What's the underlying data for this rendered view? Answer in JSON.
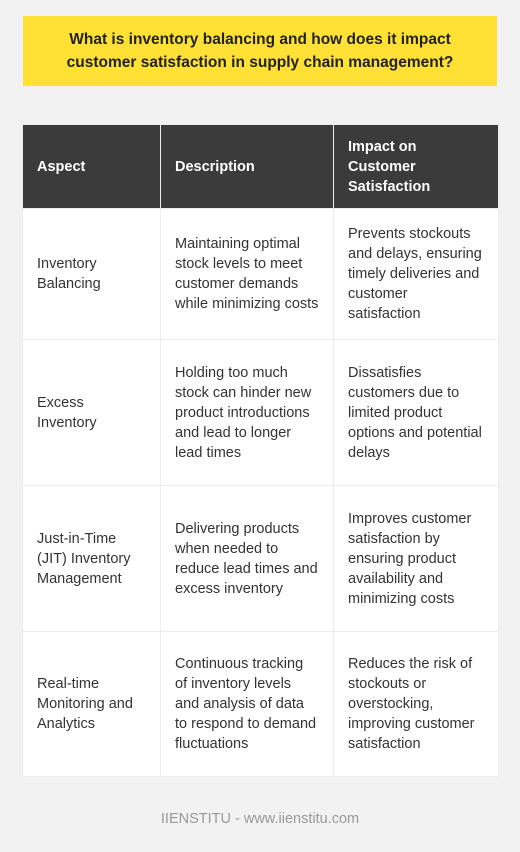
{
  "title": "What is inventory balancing and how does it impact customer satisfaction in supply chain management?",
  "table": {
    "headers": [
      "Aspect",
      "Description",
      "Impact on Customer Satisfaction"
    ],
    "rows": [
      {
        "aspect": "Inventory Balancing",
        "description": "Maintaining optimal stock levels to meet customer demands while minimizing costs",
        "impact": "Prevents stockouts and delays, ensuring timely deliveries and customer satisfaction"
      },
      {
        "aspect": "Excess Inventory",
        "description": "Holding too much stock can hinder new product introductions and lead to longer lead times",
        "impact": "Dissatisfies customers due to limited product options and potential delays"
      },
      {
        "aspect": "Just-in-Time (JIT) Inventory Management",
        "description": "Delivering products when needed to reduce lead times and excess inventory",
        "impact": "Improves customer satisfaction by ensuring product availability and minimizing costs"
      },
      {
        "aspect": "Real-time Monitoring and Analytics",
        "description": "Continuous tracking of inventory levels and analysis of data to respond to demand fluctuations",
        "impact": "Reduces the risk of stockouts or overstocking, improving customer satisfaction"
      }
    ]
  },
  "footer": "IIENSTITU - www.iienstitu.com"
}
